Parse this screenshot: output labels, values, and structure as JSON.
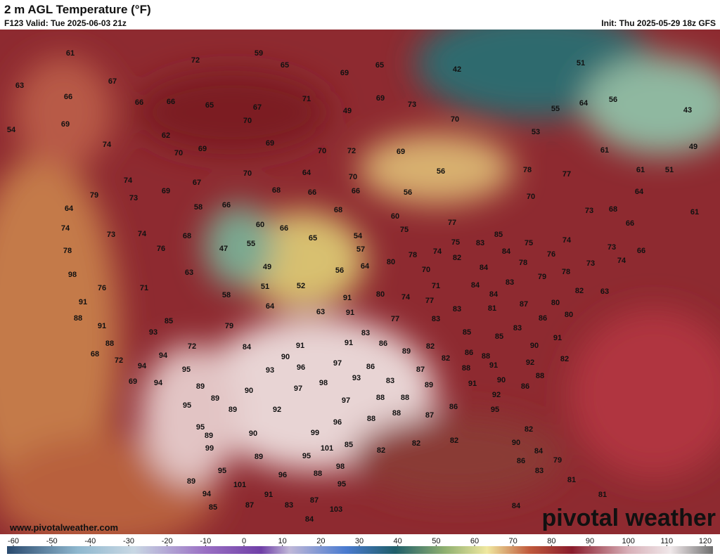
{
  "header": {
    "title": "2 m AGL Temperature (°F)",
    "valid": "F123 Valid: Tue 2025-06-03 21z",
    "init": "Init: Thu 2025-05-29 18z GFS"
  },
  "watermark": "pivotal weather",
  "website": "www.pivotalweather.com",
  "colorbar": {
    "ticks": [
      -60,
      -50,
      -40,
      -30,
      -20,
      -10,
      0,
      10,
      20,
      30,
      40,
      50,
      60,
      70,
      80,
      90,
      100,
      110,
      120
    ]
  },
  "map_labels": [
    61,
    59,
    72,
    65,
    65,
    69,
    42,
    51,
    63,
    67,
    71,
    69,
    73,
    56,
    64,
    43,
    66,
    66,
    66,
    65,
    67,
    49,
    55,
    69,
    70,
    70,
    62,
    53,
    74,
    69,
    70,
    69,
    70,
    72,
    69,
    61,
    49,
    54,
    56,
    78,
    77,
    70,
    64,
    70,
    61,
    51,
    74,
    69,
    67,
    68,
    66,
    66,
    56,
    70,
    79,
    73,
    58,
    66,
    68,
    64,
    64,
    60,
    73,
    68,
    61,
    74,
    60,
    66,
    75,
    77,
    73,
    74,
    68,
    65,
    54,
    85,
    66,
    78,
    76,
    47,
    55,
    57,
    75,
    83,
    84,
    75,
    74,
    73,
    66,
    78,
    80,
    74,
    82,
    78,
    76,
    73,
    74,
    98,
    49,
    56,
    64,
    70,
    84,
    78,
    79,
    63,
    76,
    71,
    51,
    52,
    71,
    84,
    83,
    82,
    63,
    58,
    91,
    80,
    74,
    77,
    84,
    87,
    80,
    64,
    63,
    91,
    91,
    83,
    81,
    88,
    85,
    77,
    86,
    80,
    91,
    79,
    83,
    83,
    93,
    83,
    85,
    85,
    91,
    88,
    72,
    84,
    91,
    91,
    86,
    89,
    82,
    86,
    90,
    68,
    94,
    90,
    97,
    86,
    82,
    88,
    72,
    94,
    95,
    93,
    96,
    91,
    87,
    88,
    92,
    82,
    69,
    94,
    89,
    93,
    98,
    83,
    89,
    91,
    90,
    88,
    90,
    97,
    92,
    86,
    89,
    88,
    88,
    95,
    97,
    95,
    86,
    89,
    92,
    88,
    87,
    88,
    95,
    96,
    82,
    90,
    99,
    89,
    82,
    82,
    82,
    90,
    84,
    99,
    101,
    85,
    95,
    89,
    98,
    86,
    83,
    79,
    95,
    96,
    88,
    95,
    81,
    101,
    89,
    81,
    94,
    91,
    87,
    85,
    87,
    83,
    103,
    84,
    84
  ]
}
